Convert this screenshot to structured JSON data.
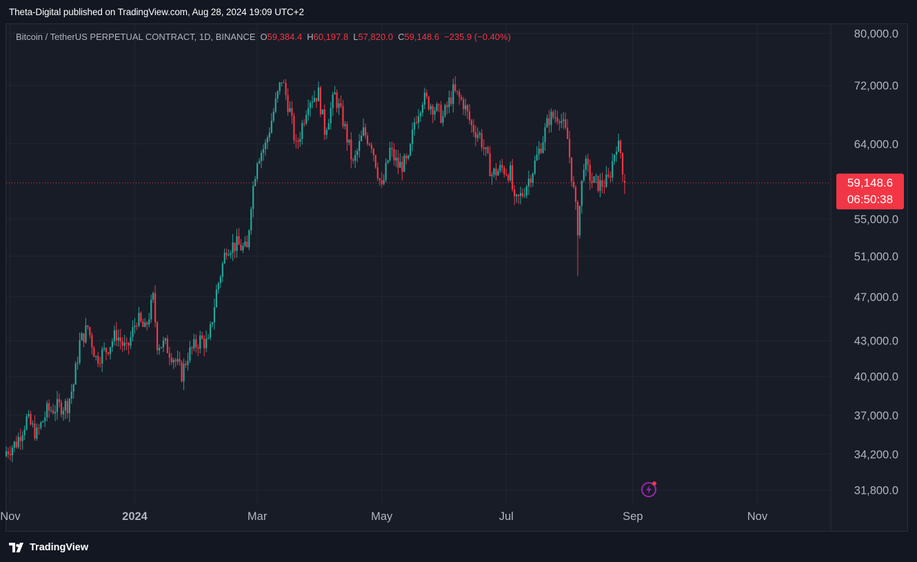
{
  "header": {
    "publisher": "Theta-Digital published on TradingView.com, Aug 28, 2024 19:09 UTC+2"
  },
  "legend": {
    "symbol": "Bitcoin / TetherUS PERPETUAL CONTRACT, 1D, BINANCE",
    "open_label": "O",
    "open": "59,384.4",
    "high_label": "H",
    "high": "60,197.8",
    "low_label": "L",
    "low": "57,820.0",
    "close_label": "C",
    "close": "59,148.6",
    "change": "−235.9 (−0.40%)"
  },
  "price_tag": {
    "price": "59,148.6",
    "countdown": "06:50:38"
  },
  "footer": {
    "brand": "TradingView",
    "logo_icon": "tradingview-logo-icon"
  },
  "colors": {
    "up": "#26a69a",
    "down": "#f23645",
    "background": "#181c27",
    "grid": "#232632",
    "text": "#b2b5be"
  },
  "chart_data": {
    "type": "candlestick",
    "scale": "log",
    "title": "",
    "ylim": [
      31000,
      81500
    ],
    "y_ticks": [
      80000,
      72000,
      64000,
      55000,
      51000,
      47000,
      43000,
      40000,
      37000,
      34200,
      31800
    ],
    "y_tick_labels": [
      "80,000.0",
      "72,000.0",
      "64,000.0",
      "55,000.0",
      "51,000.0",
      "47,000.0",
      "43,000.0",
      "40,000.0",
      "37,000.0",
      "34,200.0",
      "31,800.0"
    ],
    "x_ticks": [
      "2023-11-01",
      "2024-01-01",
      "2024-03-01",
      "2024-05-01",
      "2024-07-01",
      "2024-09-01",
      "2024-11-01"
    ],
    "x_tick_labels": [
      "Nov",
      "2024",
      "Mar",
      "May",
      "Jul",
      "Sep",
      "Nov"
    ],
    "xlim": [
      "2023-10-30",
      "2024-12-07"
    ],
    "last_price": 59148.6,
    "series": [
      {
        "date": "2023-10-30",
        "close": 34400
      },
      {
        "date": "2023-11-04",
        "close": 35000
      },
      {
        "date": "2023-11-09",
        "close": 36700
      },
      {
        "date": "2023-11-14",
        "close": 35600
      },
      {
        "date": "2023-11-19",
        "close": 37300
      },
      {
        "date": "2023-11-24",
        "close": 37600
      },
      {
        "date": "2023-11-29",
        "close": 37800
      },
      {
        "date": "2023-12-02",
        "close": 39400
      },
      {
        "date": "2023-12-05",
        "close": 42800
      },
      {
        "date": "2023-12-09",
        "close": 44200
      },
      {
        "date": "2023-12-13",
        "close": 41500
      },
      {
        "date": "2023-12-18",
        "close": 42200
      },
      {
        "date": "2023-12-23",
        "close": 43600
      },
      {
        "date": "2023-12-28",
        "close": 42100
      },
      {
        "date": "2024-01-02",
        "close": 45000
      },
      {
        "date": "2024-01-06",
        "close": 43900
      },
      {
        "date": "2024-01-10",
        "close": 46800
      },
      {
        "date": "2024-01-12",
        "close": 42800
      },
      {
        "date": "2024-01-16",
        "close": 42600
      },
      {
        "date": "2024-01-20",
        "close": 41600
      },
      {
        "date": "2024-01-24",
        "close": 40200
      },
      {
        "date": "2024-01-27",
        "close": 41800
      },
      {
        "date": "2024-02-02",
        "close": 43100
      },
      {
        "date": "2024-02-06",
        "close": 42700
      },
      {
        "date": "2024-02-10",
        "close": 47500
      },
      {
        "date": "2024-02-15",
        "close": 52000
      },
      {
        "date": "2024-02-20",
        "close": 52200
      },
      {
        "date": "2024-02-25",
        "close": 51600
      },
      {
        "date": "2024-02-27",
        "close": 57000
      },
      {
        "date": "2024-03-01",
        "close": 62300
      },
      {
        "date": "2024-03-05",
        "close": 63800
      },
      {
        "date": "2024-03-09",
        "close": 68300
      },
      {
        "date": "2024-03-13",
        "close": 73000
      },
      {
        "date": "2024-03-17",
        "close": 68300
      },
      {
        "date": "2024-03-20",
        "close": 63500
      },
      {
        "date": "2024-03-22",
        "close": 65400
      },
      {
        "date": "2024-03-26",
        "close": 70000
      },
      {
        "date": "2024-03-31",
        "close": 70800
      },
      {
        "date": "2024-04-03",
        "close": 65800
      },
      {
        "date": "2024-04-08",
        "close": 70600
      },
      {
        "date": "2024-04-12",
        "close": 67100
      },
      {
        "date": "2024-04-17",
        "close": 61300
      },
      {
        "date": "2024-04-22",
        "close": 65500
      },
      {
        "date": "2024-04-26",
        "close": 64100
      },
      {
        "date": "2024-05-01",
        "close": 58300
      },
      {
        "date": "2024-05-05",
        "close": 63200
      },
      {
        "date": "2024-05-09",
        "close": 61200
      },
      {
        "date": "2024-05-14",
        "close": 61600
      },
      {
        "date": "2024-05-17",
        "close": 66900
      },
      {
        "date": "2024-05-21",
        "close": 70200
      },
      {
        "date": "2024-05-26",
        "close": 69100
      },
      {
        "date": "2024-05-31",
        "close": 67500
      },
      {
        "date": "2024-06-05",
        "close": 71100
      },
      {
        "date": "2024-06-10",
        "close": 69500
      },
      {
        "date": "2024-06-14",
        "close": 66300
      },
      {
        "date": "2024-06-18",
        "close": 65100
      },
      {
        "date": "2024-06-24",
        "close": 60200
      },
      {
        "date": "2024-06-29",
        "close": 60900
      },
      {
        "date": "2024-07-03",
        "close": 60300
      },
      {
        "date": "2024-07-05",
        "close": 56600
      },
      {
        "date": "2024-07-09",
        "close": 57900
      },
      {
        "date": "2024-07-14",
        "close": 60800
      },
      {
        "date": "2024-07-18",
        "close": 63900
      },
      {
        "date": "2024-07-22",
        "close": 67400
      },
      {
        "date": "2024-07-27",
        "close": 67900
      },
      {
        "date": "2024-07-31",
        "close": 64600
      },
      {
        "date": "2024-08-03",
        "close": 58100
      },
      {
        "date": "2024-08-05",
        "close": 54000
      },
      {
        "date": "2024-08-08",
        "close": 61700
      },
      {
        "date": "2024-08-12",
        "close": 59300
      },
      {
        "date": "2024-08-16",
        "close": 58900
      },
      {
        "date": "2024-08-20",
        "close": 59400
      },
      {
        "date": "2024-08-24",
        "close": 64100
      },
      {
        "date": "2024-08-26",
        "close": 62900
      },
      {
        "date": "2024-08-28",
        "close": 59149
      }
    ]
  }
}
